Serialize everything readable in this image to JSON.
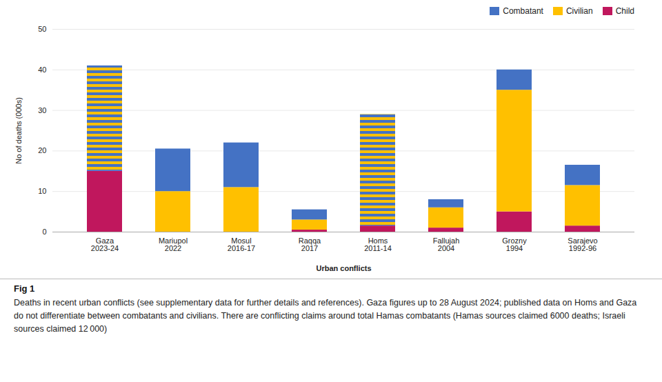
{
  "chart_data": {
    "type": "bar",
    "stacked": true,
    "xlabel": "Urban conflicts",
    "ylabel": "No of deaths (000s)",
    "categories": [
      "Gaza\n2023-24",
      "Mariupol\n2022",
      "Mosul\n2016-17",
      "Raqqa\n2017",
      "Homs\n2011-14",
      "Fallujah\n2004",
      "Grozny\n1994",
      "Sarajevo\n1992-96"
    ],
    "series": [
      {
        "name": "Child",
        "color": "#c0175d",
        "values": [
          15.0,
          0,
          0,
          0.5,
          1.5,
          1.0,
          5.0,
          1.5
        ]
      },
      {
        "color": [
          "#ffc000",
          "#4472c4"
        ],
        "values": [
          26.0,
          0,
          0,
          0,
          27.5,
          0,
          0,
          0
        ]
      },
      {
        "name": "Civilian",
        "color": "#ffc000",
        "values": [
          0,
          10.0,
          11.0,
          2.5,
          0,
          5.0,
          30.0,
          10.0
        ]
      },
      {
        "name": "Combatant",
        "color": "#4472c4",
        "values": [
          0,
          10.5,
          11.0,
          2.5,
          0,
          2.0,
          5.0,
          5.0
        ]
      }
    ],
    "ylim": [
      0,
      50
    ],
    "yticks": [
      0,
      10,
      20,
      30,
      40,
      50
    ],
    "grid": true,
    "legend": "upper right",
    "caption_title": "Fig 1",
    "caption": "Deaths in recent urban conflicts (see supplementary data for further details and references). Gaza figures up to 28 August 2024; published data on Homs and Gaza do not differentiate between combatants and civilians. There are conflicting claims around total Hamas combatants (Hamas sources claimed 6000 deaths; Israeli sources claimed 12 000)"
  }
}
